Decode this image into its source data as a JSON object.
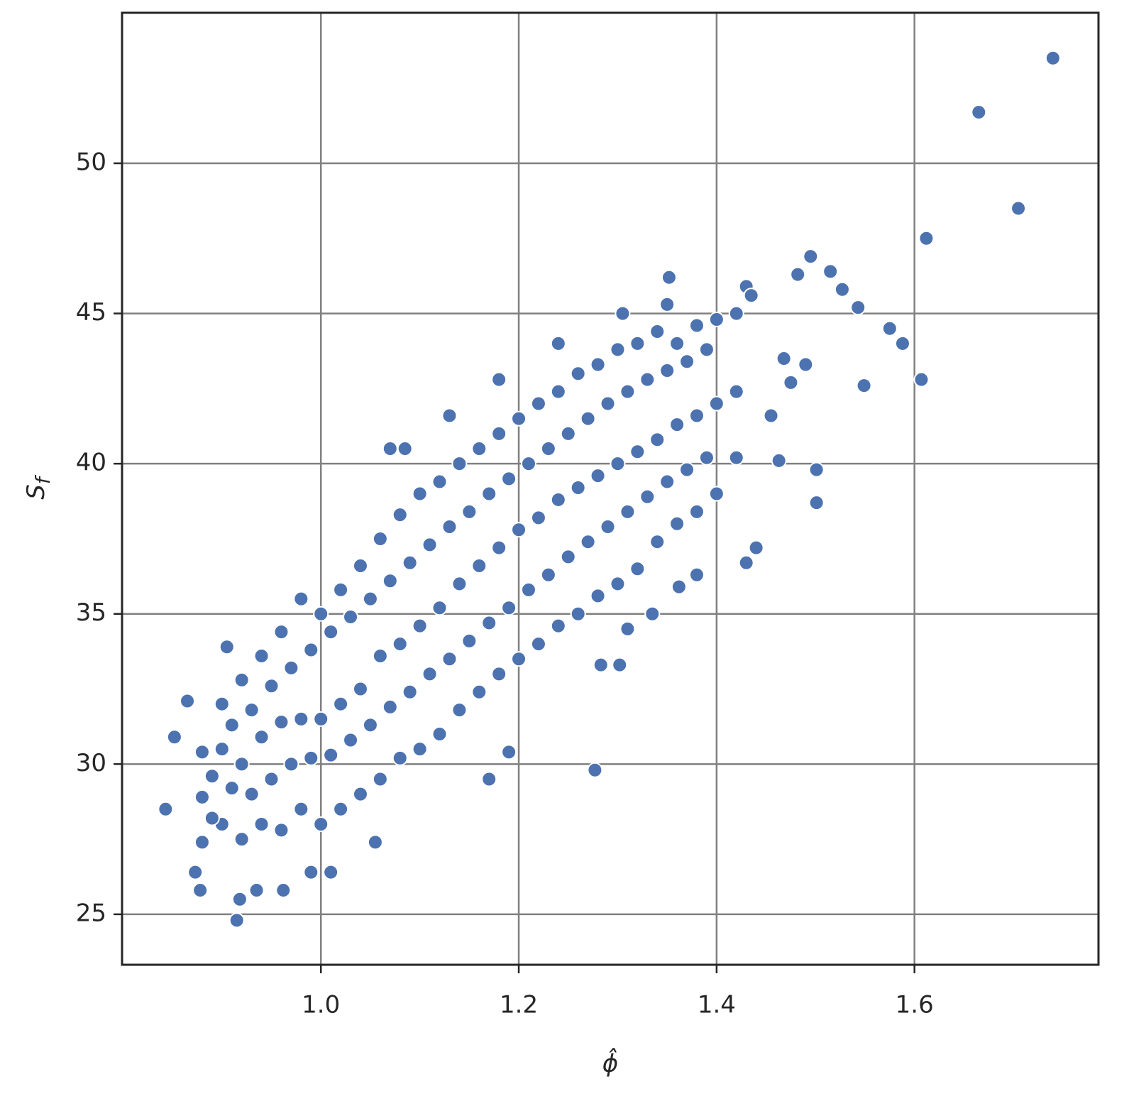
{
  "chart_data": {
    "type": "scatter",
    "xlabel": "ϕ̂",
    "ylabel": {
      "base": "S",
      "subscript": "f"
    },
    "color": "#4c72b0",
    "grid": true,
    "xlim": [
      0.799,
      1.786
    ],
    "ylim": [
      23.32,
      55.01
    ],
    "xticks": [
      {
        "value": 1,
        "label": "1.0"
      },
      1.2,
      1.4,
      1.6
    ],
    "yticks": [
      25,
      30,
      35,
      40,
      45,
      50
    ],
    "x": [
      0.88,
      0.88,
      0.88,
      0.9,
      0.9,
      0.9,
      0.92,
      0.92,
      0.92,
      0.94,
      0.94,
      0.94,
      0.96,
      0.96,
      0.96,
      0.98,
      0.98,
      0.98,
      1.0,
      1.0,
      1.0,
      1.02,
      1.02,
      1.02,
      1.04,
      1.04,
      1.04,
      1.06,
      1.06,
      1.06,
      1.08,
      1.08,
      1.08,
      1.1,
      1.1,
      1.1,
      1.12,
      1.12,
      1.12,
      1.14,
      1.14,
      1.14,
      1.16,
      1.16,
      1.16,
      1.18,
      1.18,
      1.18,
      1.2,
      1.2,
      1.2,
      1.22,
      1.22,
      1.22,
      1.24,
      1.24,
      1.24,
      1.26,
      1.26,
      1.26,
      1.28,
      1.28,
      1.28,
      1.3,
      1.3,
      1.3,
      1.32,
      1.32,
      1.32,
      1.34,
      1.34,
      1.34,
      1.36,
      1.36,
      1.36,
      1.38,
      1.38,
      1.38,
      1.4,
      1.4,
      1.4,
      1.42,
      1.42,
      1.42,
      0.89,
      0.89,
      0.91,
      0.91,
      0.93,
      0.93,
      0.95,
      0.95,
      0.97,
      0.97,
      0.99,
      0.99,
      1.01,
      1.01,
      1.03,
      1.03,
      1.05,
      1.05,
      1.07,
      1.07,
      1.09,
      1.09,
      1.11,
      1.11,
      1.13,
      1.13,
      1.15,
      1.15,
      1.17,
      1.17,
      1.19,
      1.19,
      1.21,
      1.21,
      1.23,
      1.23,
      1.25,
      1.25,
      1.27,
      1.27,
      1.29,
      1.29,
      1.31,
      1.31,
      1.33,
      1.33,
      1.35,
      1.35,
      1.37,
      1.37,
      1.39,
      1.39,
      1.74,
      1.665,
      1.705,
      1.612,
      1.495,
      1.515,
      1.482,
      1.527,
      1.543,
      1.575,
      1.588,
      1.607,
      1.549,
      1.501,
      1.501,
      1.49,
      1.475,
      1.468,
      1.463,
      1.455,
      1.44,
      1.43,
      1.38,
      1.362,
      1.335,
      1.31,
      1.302,
      1.283,
      1.277,
      1.17,
      1.19,
      1.055,
      1.01,
      0.99,
      0.915,
      0.918,
      0.935,
      0.962,
      0.873,
      0.878,
      0.843,
      0.852,
      0.865,
      0.905,
      1.07,
      1.085,
      1.13,
      1.18,
      1.24,
      1.352,
      1.35,
      1.305,
      1.43,
      1.435
    ],
    "values": [
      27.4,
      28.9,
      30.4,
      28.0,
      30.5,
      32.0,
      27.5,
      30.0,
      32.8,
      28.0,
      30.9,
      33.6,
      27.8,
      31.4,
      34.4,
      28.5,
      31.5,
      35.5,
      28.0,
      31.5,
      35.0,
      28.5,
      32.0,
      35.8,
      29.0,
      32.5,
      36.6,
      29.5,
      33.6,
      37.5,
      30.2,
      34.0,
      38.3,
      30.5,
      34.6,
      39.0,
      31.0,
      35.2,
      39.4,
      31.8,
      36.0,
      40.0,
      32.4,
      36.6,
      40.5,
      33.0,
      37.2,
      41.0,
      33.5,
      37.8,
      41.5,
      34.0,
      38.2,
      42.0,
      34.6,
      38.8,
      42.4,
      35.0,
      39.2,
      43.0,
      35.6,
      39.6,
      43.3,
      36.0,
      40.0,
      43.8,
      36.5,
      40.4,
      44.0,
      37.4,
      40.8,
      44.4,
      38.0,
      41.3,
      44.0,
      38.4,
      41.6,
      44.6,
      39.0,
      42.0,
      44.8,
      40.2,
      42.4,
      45.0,
      28.2,
      29.6,
      29.2,
      31.3,
      29.0,
      31.8,
      29.5,
      32.6,
      30.0,
      33.2,
      30.2,
      33.8,
      30.3,
      34.4,
      30.8,
      34.9,
      31.3,
      35.5,
      31.9,
      36.1,
      32.4,
      36.7,
      33.0,
      37.3,
      33.5,
      37.9,
      34.1,
      38.4,
      34.7,
      39.0,
      35.2,
      39.5,
      35.8,
      40.0,
      36.3,
      40.5,
      36.9,
      41.0,
      37.4,
      41.5,
      37.9,
      42.0,
      38.4,
      42.4,
      38.9,
      42.8,
      39.4,
      43.1,
      39.8,
      43.4,
      40.2,
      43.8,
      53.5,
      51.7,
      48.5,
      47.5,
      46.9,
      46.4,
      46.3,
      45.8,
      45.2,
      44.5,
      44.0,
      42.8,
      42.6,
      39.8,
      38.7,
      43.3,
      42.7,
      43.5,
      40.1,
      41.6,
      37.2,
      36.7,
      36.3,
      35.9,
      35.0,
      34.5,
      33.3,
      33.3,
      29.8,
      29.5,
      30.4,
      27.4,
      26.4,
      26.4,
      24.8,
      25.5,
      25.8,
      25.8,
      26.4,
      25.8,
      28.5,
      30.9,
      32.1,
      33.9,
      40.5,
      40.5,
      41.6,
      42.8,
      44.0,
      46.2,
      45.3,
      45.0,
      45.9,
      45.6
    ]
  }
}
